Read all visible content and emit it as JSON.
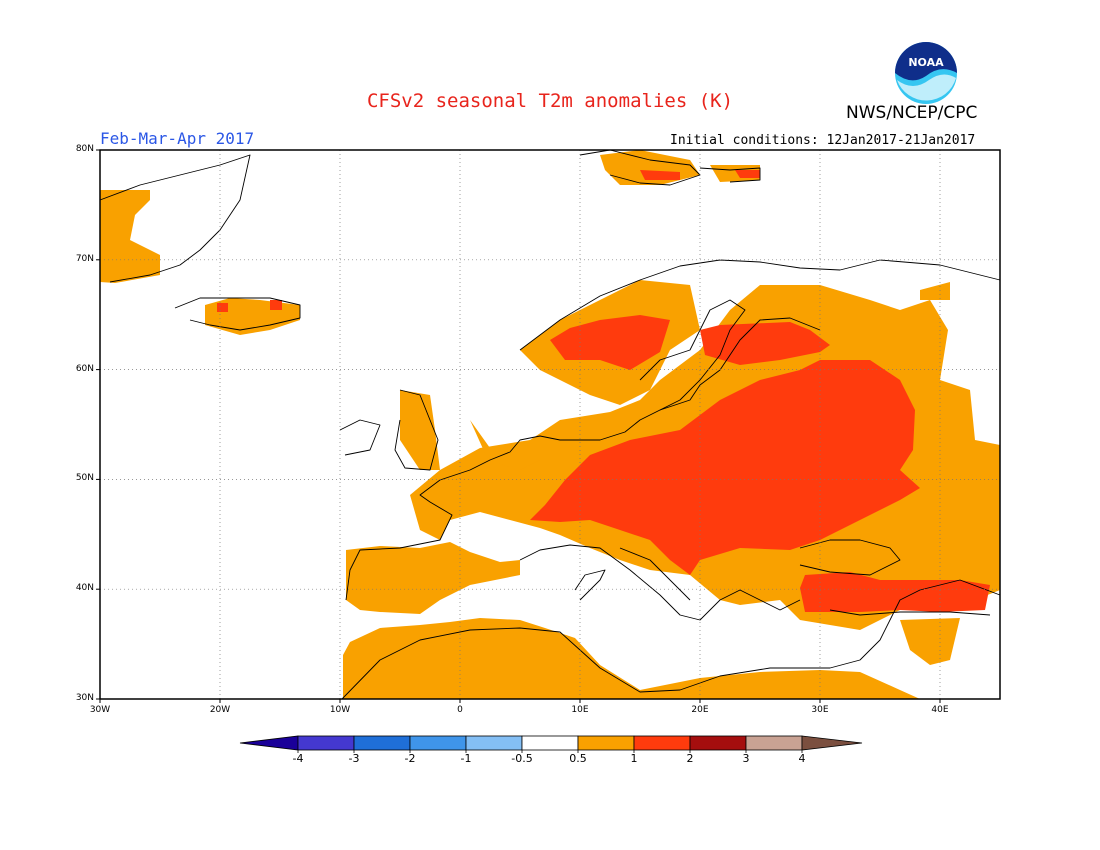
{
  "title": "CFSv2 seasonal T2m anomalies (K)",
  "organization": "NWS/NCEP/CPC",
  "logo_text": "NOAA",
  "period": "Feb-Mar-Apr 2017",
  "initial_conditions": "Initial conditions: 12Jan2017-21Jan2017",
  "map": {
    "lon_labels": [
      "30W",
      "20W",
      "10W",
      "0",
      "10E",
      "20E",
      "30E",
      "40E"
    ],
    "lat_labels": [
      "80N",
      "70N",
      "60N",
      "50N",
      "40N",
      "30N"
    ]
  },
  "colorbar": {
    "labels": [
      "-4",
      "-3",
      "-2",
      "-1",
      "-0.5",
      "0.5",
      "1",
      "2",
      "3",
      "4"
    ],
    "colors": [
      "#1a0099",
      "#4438d0",
      "#1f6fd8",
      "#3f95ea",
      "#84bff5",
      "#ffffff",
      "#f9a100",
      "#ff3b0d",
      "#a50e0e",
      "#c9a293",
      "#7b4f3f"
    ]
  },
  "anomaly_colors": {
    "weak_warm": "#f9a100",
    "strong_warm": "#ff3b0d",
    "very_strong_warm": "#a50e0e"
  }
}
